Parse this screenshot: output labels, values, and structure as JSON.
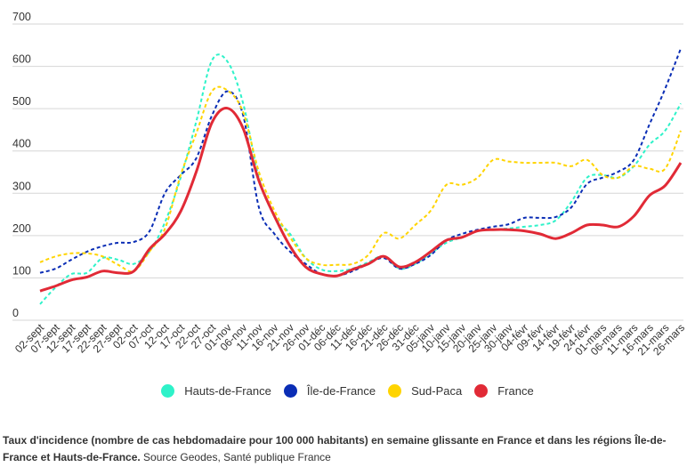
{
  "chart_data": {
    "type": "line",
    "title": "",
    "xlabel": "",
    "ylabel": "",
    "ylim": [
      0,
      700
    ],
    "yticks": [
      0,
      100,
      200,
      300,
      400,
      500,
      600,
      700
    ],
    "grid": true,
    "legend_position": "bottom",
    "categories": [
      "02-sept",
      "07-sept",
      "12-sept",
      "17-sept",
      "22-sept",
      "27-sept",
      "02-oct",
      "07-oct",
      "12-oct",
      "17-oct",
      "22-oct",
      "27-oct",
      "01-nov",
      "06-nov",
      "11-nov",
      "16-nov",
      "21-nov",
      "26-nov",
      "01-déc",
      "06-déc",
      "11-déc",
      "16-déc",
      "21-déc",
      "26-déc",
      "31-déc",
      "05-janv",
      "10-janv",
      "15-janv",
      "20-janv",
      "25-janv",
      "30-janv",
      "04-févr",
      "09-févr",
      "14-févr",
      "19-févr",
      "24-févr",
      "01-mars",
      "06-mars",
      "11-mars",
      "16-mars",
      "21-mars",
      "26-mars"
    ],
    "series": [
      {
        "name": "Hauts-de-France",
        "color": "#2ef2c9",
        "style": "dashed",
        "values": [
          38,
          78,
          109,
          112,
          147,
          143,
          133,
          162,
          232,
          337,
          470,
          614,
          611,
          512,
          337,
          246,
          204,
          147,
          120,
          116,
          122,
          137,
          151,
          122,
          133,
          158,
          183,
          196,
          211,
          214,
          217,
          221,
          225,
          236,
          280,
          337,
          343,
          337,
          364,
          415,
          448,
          512
        ]
      },
      {
        "name": "Île-de-France",
        "color": "#0a2db5",
        "style": "dashed",
        "values": [
          112,
          122,
          143,
          162,
          175,
          183,
          185,
          210,
          301,
          343,
          383,
          484,
          541,
          484,
          267,
          204,
          162,
          133,
          109,
          105,
          116,
          133,
          147,
          122,
          133,
          154,
          189,
          204,
          214,
          221,
          227,
          242,
          242,
          244,
          267,
          322,
          337,
          351,
          379,
          463,
          547,
          642
        ]
      },
      {
        "name": "Sud-Paca",
        "color": "#ffd400",
        "style": "dashed",
        "values": [
          137,
          151,
          158,
          158,
          151,
          131,
          116,
          162,
          217,
          343,
          442,
          541,
          543,
          491,
          351,
          259,
          196,
          147,
          131,
          131,
          133,
          154,
          206,
          193,
          225,
          259,
          320,
          320,
          337,
          379,
          375,
          372,
          372,
          372,
          364,
          379,
          343,
          337,
          364,
          358,
          358,
          448
        ]
      },
      {
        "name": "France",
        "color": "#e12a36",
        "style": "solid",
        "values": [
          69,
          81,
          95,
          102,
          116,
          112,
          116,
          168,
          204,
          257,
          351,
          467,
          501,
          453,
          330,
          246,
          175,
          126,
          109,
          105,
          120,
          133,
          151,
          126,
          137,
          162,
          189,
          196,
          211,
          214,
          214,
          211,
          204,
          193,
          206,
          225,
          225,
          221,
          246,
          295,
          318,
          372
        ]
      }
    ]
  },
  "caption": {
    "bold": "Taux d'incidence (nombre de cas hebdomadaire pour 100 000 habitants) en semaine glissante en France et dans les régions Île-de-France et Hauts-de-France.",
    "source": " Source Geodes, Santé publique France"
  }
}
